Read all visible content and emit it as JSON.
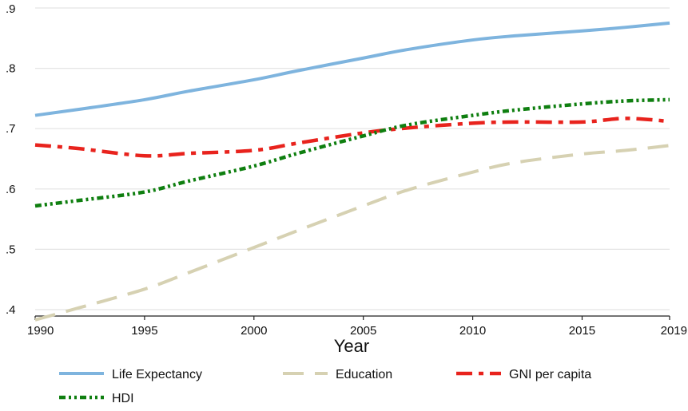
{
  "chart_data": {
    "type": "line",
    "title": "",
    "xlabel": "Year",
    "ylabel": "",
    "xlim": [
      1990,
      2019
    ],
    "ylim": [
      0.4,
      0.9
    ],
    "grid": "horizontal",
    "legend_placement": "bottom",
    "x_ticks": [
      1990,
      1995,
      2000,
      2005,
      2010,
      2015,
      2019
    ],
    "x_tick_labels": [
      "1990",
      "1995",
      "2000",
      "2005",
      "2010",
      "2015",
      "2019"
    ],
    "y_ticks": [
      0.4,
      0.5,
      0.6,
      0.7,
      0.8,
      0.9
    ],
    "y_tick_labels": [
      ".4",
      ".5",
      ".6",
      ".7",
      ".8",
      ".9"
    ],
    "x": [
      1990,
      1992,
      1995,
      1997,
      2000,
      2002,
      2005,
      2007,
      2010,
      2012,
      2015,
      2017,
      2019
    ],
    "series": [
      {
        "name": "Life Expectancy",
        "color": "#7eb4de",
        "style": "solid",
        "values": [
          0.722,
          0.732,
          0.748,
          0.762,
          0.781,
          0.796,
          0.817,
          0.831,
          0.847,
          0.854,
          0.862,
          0.868,
          0.875
        ]
      },
      {
        "name": "Education",
        "color": "#d6d1b2",
        "style": "dash",
        "values": [
          0.383,
          0.403,
          0.434,
          0.461,
          0.503,
          0.531,
          0.572,
          0.598,
          0.628,
          0.644,
          0.658,
          0.664,
          0.672
        ]
      },
      {
        "name": "GNI per capita",
        "color": "#e8231d",
        "style": "dashdot",
        "values": [
          0.673,
          0.667,
          0.655,
          0.659,
          0.664,
          0.676,
          0.693,
          0.701,
          0.709,
          0.711,
          0.711,
          0.717,
          0.712
        ]
      },
      {
        "name": "HDI",
        "color": "#0f7f10",
        "style": "dashdotdot",
        "values": [
          0.572,
          0.581,
          0.595,
          0.613,
          0.638,
          0.659,
          0.688,
          0.706,
          0.722,
          0.731,
          0.741,
          0.746,
          0.748
        ]
      }
    ]
  }
}
